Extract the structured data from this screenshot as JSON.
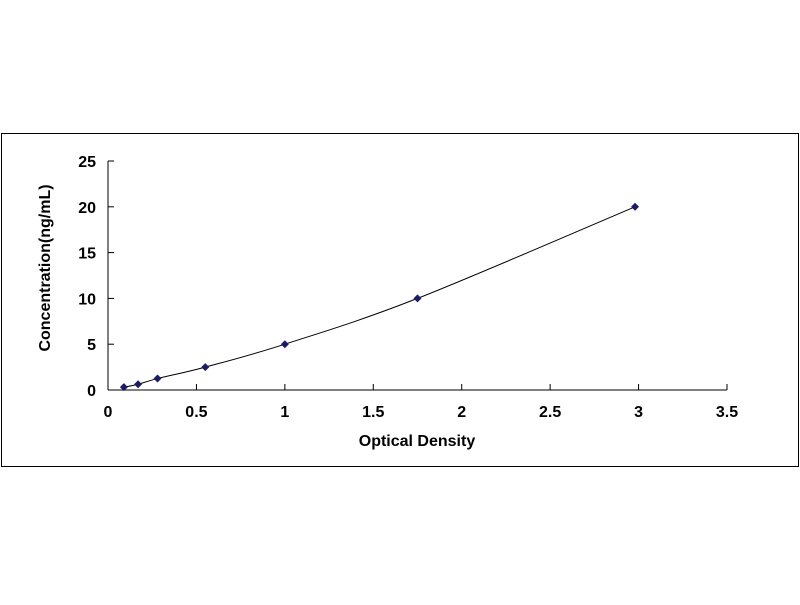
{
  "chart_data": {
    "type": "line",
    "title": "",
    "xlabel": "Optical Density",
    "ylabel": "Concentration(ng/mL)",
    "xlim": [
      0,
      3.5
    ],
    "ylim": [
      0,
      25
    ],
    "xticks": [
      "0",
      "0.5",
      "1",
      "1.5",
      "2",
      "2.5",
      "3",
      "3.5"
    ],
    "yticks": [
      "0",
      "5",
      "10",
      "15",
      "20",
      "25"
    ],
    "grid": false,
    "legend": "none",
    "series": [
      {
        "x": [
          0.09,
          0.17,
          0.28,
          0.55,
          1.0,
          1.75,
          2.98
        ],
        "y": [
          0.312,
          0.625,
          1.25,
          2.5,
          5,
          10,
          20
        ],
        "color": "#1a1a6e",
        "marker": "diamond",
        "line": "smooth"
      }
    ]
  }
}
